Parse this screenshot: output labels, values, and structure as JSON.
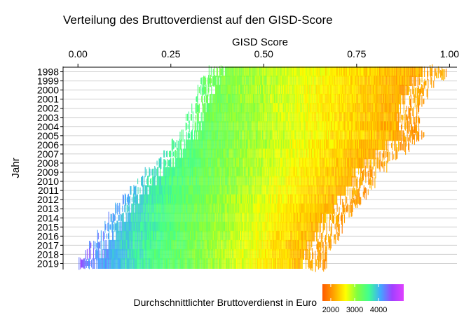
{
  "chart_data": {
    "type": "heatmap",
    "title": "Verteilung des Bruttoverdienst auf den GISD-Score",
    "xlabel": "GISD Score",
    "ylabel": "Jahr",
    "x_axis_position": "top",
    "xlim": [
      -0.04,
      1.02
    ],
    "x_ticks": [
      0.0,
      0.25,
      0.5,
      0.75,
      1.0
    ],
    "x_tick_labels": [
      "0.00",
      "0.25",
      "0.50",
      "0.75",
      "1.00"
    ],
    "categories": [
      "1998",
      "1999",
      "2000",
      "2001",
      "2002",
      "2003",
      "2004",
      "2005",
      "2006",
      "2007",
      "2008",
      "2009",
      "2010",
      "2011",
      "2012",
      "2013",
      "2014",
      "2015",
      "2016",
      "2017",
      "2018",
      "2019"
    ],
    "rows": [
      {
        "year": "1998",
        "gisd_min": 0.35,
        "gisd_max": 0.99,
        "income_low": 2050,
        "income_high": 3300
      },
      {
        "year": "1999",
        "gisd_min": 0.33,
        "gisd_max": 0.96,
        "income_low": 2050,
        "income_high": 3400
      },
      {
        "year": "2000",
        "gisd_min": 0.32,
        "gisd_max": 0.94,
        "income_low": 2050,
        "income_high": 3400
      },
      {
        "year": "2001",
        "gisd_min": 0.31,
        "gisd_max": 0.93,
        "income_low": 2050,
        "income_high": 3450
      },
      {
        "year": "2002",
        "gisd_min": 0.3,
        "gisd_max": 0.92,
        "income_low": 2050,
        "income_high": 3500
      },
      {
        "year": "2003",
        "gisd_min": 0.29,
        "gisd_max": 0.92,
        "income_low": 2050,
        "income_high": 3500
      },
      {
        "year": "2004",
        "gisd_min": 0.28,
        "gisd_max": 0.92,
        "income_low": 2050,
        "income_high": 3550
      },
      {
        "year": "2005",
        "gisd_min": 0.27,
        "gisd_max": 0.93,
        "income_low": 2050,
        "income_high": 3600
      },
      {
        "year": "2006",
        "gisd_min": 0.25,
        "gisd_max": 0.89,
        "income_low": 2050,
        "income_high": 3650
      },
      {
        "year": "2007",
        "gisd_min": 0.23,
        "gisd_max": 0.86,
        "income_low": 2050,
        "income_high": 3700
      },
      {
        "year": "2008",
        "gisd_min": 0.21,
        "gisd_max": 0.83,
        "income_low": 2050,
        "income_high": 3800
      },
      {
        "year": "2009",
        "gisd_min": 0.18,
        "gisd_max": 0.8,
        "income_low": 2050,
        "income_high": 3900
      },
      {
        "year": "2010",
        "gisd_min": 0.16,
        "gisd_max": 0.8,
        "income_low": 2050,
        "income_high": 3950
      },
      {
        "year": "2011",
        "gisd_min": 0.14,
        "gisd_max": 0.78,
        "income_low": 2050,
        "income_high": 4000
      },
      {
        "year": "2012",
        "gisd_min": 0.12,
        "gisd_max": 0.76,
        "income_low": 2050,
        "income_high": 4050
      },
      {
        "year": "2013",
        "gisd_min": 0.1,
        "gisd_max": 0.74,
        "income_low": 2050,
        "income_high": 4100
      },
      {
        "year": "2014",
        "gisd_min": 0.08,
        "gisd_max": 0.72,
        "income_low": 2050,
        "income_high": 4200
      },
      {
        "year": "2015",
        "gisd_min": 0.07,
        "gisd_max": 0.71,
        "income_low": 2050,
        "income_high": 4250
      },
      {
        "year": "2016",
        "gisd_min": 0.05,
        "gisd_max": 0.7,
        "income_low": 2050,
        "income_high": 4300
      },
      {
        "year": "2017",
        "gisd_min": 0.03,
        "gisd_max": 0.68,
        "income_low": 2050,
        "income_high": 4350
      },
      {
        "year": "2018",
        "gisd_min": 0.02,
        "gisd_max": 0.67,
        "income_low": 2050,
        "income_high": 4400
      },
      {
        "year": "2019",
        "gisd_min": 0.0,
        "gisd_max": 0.67,
        "income_low": 2050,
        "income_high": 4500
      }
    ],
    "legend": {
      "title": "Durchschnittlichter Bruttoverdienst in Euro",
      "position": "bottom",
      "ticks": [
        2000,
        3000,
        4000
      ],
      "tick_labels": [
        "2000",
        "3000",
        "4000"
      ],
      "range": [
        1650,
        5050
      ],
      "colors": [
        "#ff5a00",
        "#ffa500",
        "#ffff00",
        "#80ff40",
        "#40ff90",
        "#40a8ff",
        "#a040ff",
        "#e040ff"
      ]
    },
    "grid": true
  }
}
